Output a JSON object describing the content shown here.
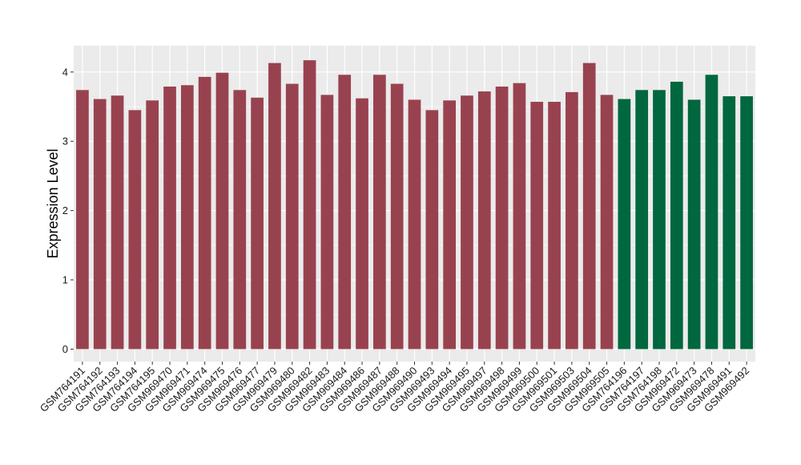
{
  "chart_data": {
    "type": "bar",
    "title": "",
    "xlabel": "",
    "ylabel": "Expression Level",
    "ylim": [
      -0.18,
      4.38
    ],
    "yticks": [
      0,
      1,
      2,
      3,
      4
    ],
    "grid": true,
    "legend": "none",
    "colors": {
      "group1": "#99424F",
      "group2": "#00673F",
      "panel": "#EBEBEB",
      "grid": "#FFFFFF"
    },
    "categories": [
      "GSM764191",
      "GSM764192",
      "GSM764193",
      "GSM764194",
      "GSM764195",
      "GSM969470",
      "GSM969471",
      "GSM969474",
      "GSM969475",
      "GSM969476",
      "GSM969477",
      "GSM969479",
      "GSM969480",
      "GSM969482",
      "GSM969483",
      "GSM969484",
      "GSM969486",
      "GSM969487",
      "GSM969488",
      "GSM969490",
      "GSM969493",
      "GSM969494",
      "GSM969495",
      "GSM969497",
      "GSM969498",
      "GSM969499",
      "GSM969500",
      "GSM969501",
      "GSM969503",
      "GSM969504",
      "GSM969505",
      "GSM764196",
      "GSM764197",
      "GSM764198",
      "GSM969472",
      "GSM969473",
      "GSM969478",
      "GSM969491",
      "GSM969492"
    ],
    "values": [
      3.74,
      3.61,
      3.66,
      3.45,
      3.59,
      3.79,
      3.81,
      3.93,
      3.99,
      3.74,
      3.63,
      4.13,
      3.83,
      4.17,
      3.67,
      3.96,
      3.62,
      3.96,
      3.83,
      3.6,
      3.45,
      3.59,
      3.66,
      3.72,
      3.79,
      3.84,
      3.57,
      3.57,
      3.71,
      4.13,
      3.67,
      3.61,
      3.74,
      3.74,
      3.86,
      3.6,
      3.96,
      3.65,
      3.65
    ],
    "groups": [
      1,
      1,
      1,
      1,
      1,
      1,
      1,
      1,
      1,
      1,
      1,
      1,
      1,
      1,
      1,
      1,
      1,
      1,
      1,
      1,
      1,
      1,
      1,
      1,
      1,
      1,
      1,
      1,
      1,
      1,
      1,
      2,
      2,
      2,
      2,
      2,
      2,
      2,
      2
    ]
  }
}
